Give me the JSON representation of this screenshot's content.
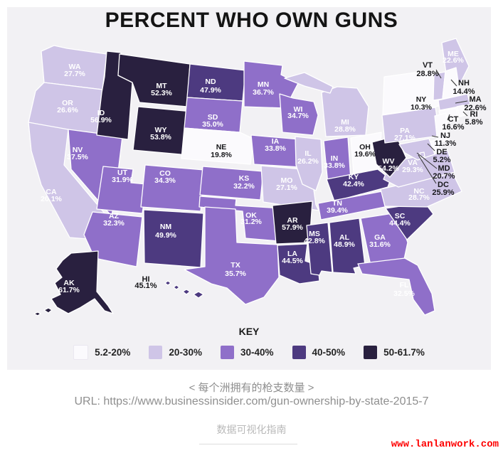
{
  "title": "PERCENT WHO OWN GUNS",
  "chart_data": {
    "type": "choropleth",
    "title": "PERCENT WHO OWN GUNS",
    "legend": {
      "title": "KEY",
      "bins": [
        {
          "label": "5.2-20%",
          "color": "#fbfafd"
        },
        {
          "label": "20-30%",
          "color": "#cfc5e7"
        },
        {
          "label": "30-40%",
          "color": "#8f6fc9"
        },
        {
          "label": "40-50%",
          "color": "#4d3a80"
        },
        {
          "label": "50-61.7%",
          "color": "#29203f"
        }
      ]
    },
    "states": [
      {
        "abbr": "WA",
        "value": 27.7,
        "display": "27.7%",
        "bin": 1
      },
      {
        "abbr": "OR",
        "value": 26.6,
        "display": "26.6%",
        "bin": 1
      },
      {
        "abbr": "CA",
        "value": 20.1,
        "display": "20.1%",
        "bin": 1
      },
      {
        "abbr": "NV",
        "value": 37.5,
        "display": "37.5%",
        "bin": 2
      },
      {
        "abbr": "ID",
        "value": 56.9,
        "display": "56.9%",
        "bin": 4
      },
      {
        "abbr": "MT",
        "value": 52.3,
        "display": "52.3%",
        "bin": 4
      },
      {
        "abbr": "WY",
        "value": 53.8,
        "display": "53.8%",
        "bin": 4
      },
      {
        "abbr": "UT",
        "value": 31.9,
        "display": "31.9%",
        "bin": 2
      },
      {
        "abbr": "CO",
        "value": 34.3,
        "display": "34.3%",
        "bin": 2
      },
      {
        "abbr": "AZ",
        "value": 32.3,
        "display": "32.3%",
        "bin": 2
      },
      {
        "abbr": "NM",
        "value": 49.9,
        "display": "49.9%",
        "bin": 3
      },
      {
        "abbr": "ND",
        "value": 47.9,
        "display": "47.9%",
        "bin": 3
      },
      {
        "abbr": "SD",
        "value": 35.0,
        "display": "35.0%",
        "bin": 2
      },
      {
        "abbr": "NE",
        "value": 19.8,
        "display": "19.8%",
        "bin": 0
      },
      {
        "abbr": "KS",
        "value": 32.2,
        "display": "32.2%",
        "bin": 2
      },
      {
        "abbr": "OK",
        "value": 31.2,
        "display": "31.2%",
        "bin": 2
      },
      {
        "abbr": "TX",
        "value": 35.7,
        "display": "35.7%",
        "bin": 2
      },
      {
        "abbr": "MN",
        "value": 36.7,
        "display": "36.7%",
        "bin": 2
      },
      {
        "abbr": "IA",
        "value": 33.8,
        "display": "33.8%",
        "bin": 2
      },
      {
        "abbr": "MO",
        "value": 27.1,
        "display": "27.1%",
        "bin": 1
      },
      {
        "abbr": "WI",
        "value": 34.7,
        "display": "34.7%",
        "bin": 2
      },
      {
        "abbr": "IL",
        "value": 26.2,
        "display": "26.2%",
        "bin": 1
      },
      {
        "abbr": "IN",
        "value": 33.8,
        "display": "33.8%",
        "bin": 2
      },
      {
        "abbr": "MI",
        "value": 28.8,
        "display": "28.8%",
        "bin": 1
      },
      {
        "abbr": "OH",
        "value": 19.6,
        "display": "19.6%",
        "bin": 0
      },
      {
        "abbr": "KY",
        "value": 42.4,
        "display": "42.4%",
        "bin": 3
      },
      {
        "abbr": "TN",
        "value": 39.4,
        "display": "39.4%",
        "bin": 2
      },
      {
        "abbr": "AR",
        "value": 57.9,
        "display": "57.9%",
        "bin": 4
      },
      {
        "abbr": "LA",
        "value": 44.5,
        "display": "44.5%",
        "bin": 3
      },
      {
        "abbr": "MS",
        "value": 42.8,
        "display": "42.8%",
        "bin": 3
      },
      {
        "abbr": "AL",
        "value": 48.9,
        "display": "48.9%",
        "bin": 3
      },
      {
        "abbr": "GA",
        "value": 31.6,
        "display": "31.6%",
        "bin": 2
      },
      {
        "abbr": "SC",
        "value": 44.4,
        "display": "44.4%",
        "bin": 3
      },
      {
        "abbr": "NC",
        "value": 28.7,
        "display": "28.7%",
        "bin": 1
      },
      {
        "abbr": "VA",
        "value": 29.3,
        "display": "29.3%",
        "bin": 1
      },
      {
        "abbr": "WV",
        "value": 54.2,
        "display": "54.2%",
        "bin": 4
      },
      {
        "abbr": "FL",
        "value": 32.5,
        "display": "32.5%",
        "bin": 2
      },
      {
        "abbr": "PA",
        "value": 27.1,
        "display": "27.1%",
        "bin": 1
      },
      {
        "abbr": "NY",
        "value": 10.3,
        "display": "10.3%",
        "bin": 0
      },
      {
        "abbr": "ME",
        "value": 22.6,
        "display": "22.6%",
        "bin": 1
      },
      {
        "abbr": "VT",
        "value": 28.8,
        "display": "28.8%",
        "bin": 1
      },
      {
        "abbr": "NH",
        "value": 14.4,
        "display": "14.4%",
        "bin": 0
      },
      {
        "abbr": "MA",
        "value": 22.6,
        "display": "22.6%",
        "bin": 1
      },
      {
        "abbr": "RI",
        "value": 5.8,
        "display": "5.8%",
        "bin": 0
      },
      {
        "abbr": "CT",
        "value": 16.6,
        "display": "16.6%",
        "bin": 0
      },
      {
        "abbr": "NJ",
        "value": 11.3,
        "display": "11.3%",
        "bin": 0
      },
      {
        "abbr": "DE",
        "value": 5.2,
        "display": "5.2%",
        "bin": 0
      },
      {
        "abbr": "MD",
        "value": 20.7,
        "display": "20.7%",
        "bin": 1
      },
      {
        "abbr": "DC",
        "value": 25.9,
        "display": "25.9%",
        "bin": 1
      },
      {
        "abbr": "AK",
        "value": 61.7,
        "display": "61.7%",
        "bin": 4
      },
      {
        "abbr": "HI",
        "value": 45.1,
        "display": "45.1%",
        "bin": 3
      }
    ]
  },
  "captions": {
    "subtitle_cn": "< 每个洲拥有的枪支数量 >",
    "source_url": "URL: https://www.businessinsider.com/gun-ownership-by-state-2015-7",
    "footer_cn": "数据可视化指南",
    "watermark": "www.lanlanwork.com"
  },
  "colors": {
    "panel_bg": "#f2f1f4",
    "watermark_red": "#fe0000",
    "title_color": "#141414"
  }
}
